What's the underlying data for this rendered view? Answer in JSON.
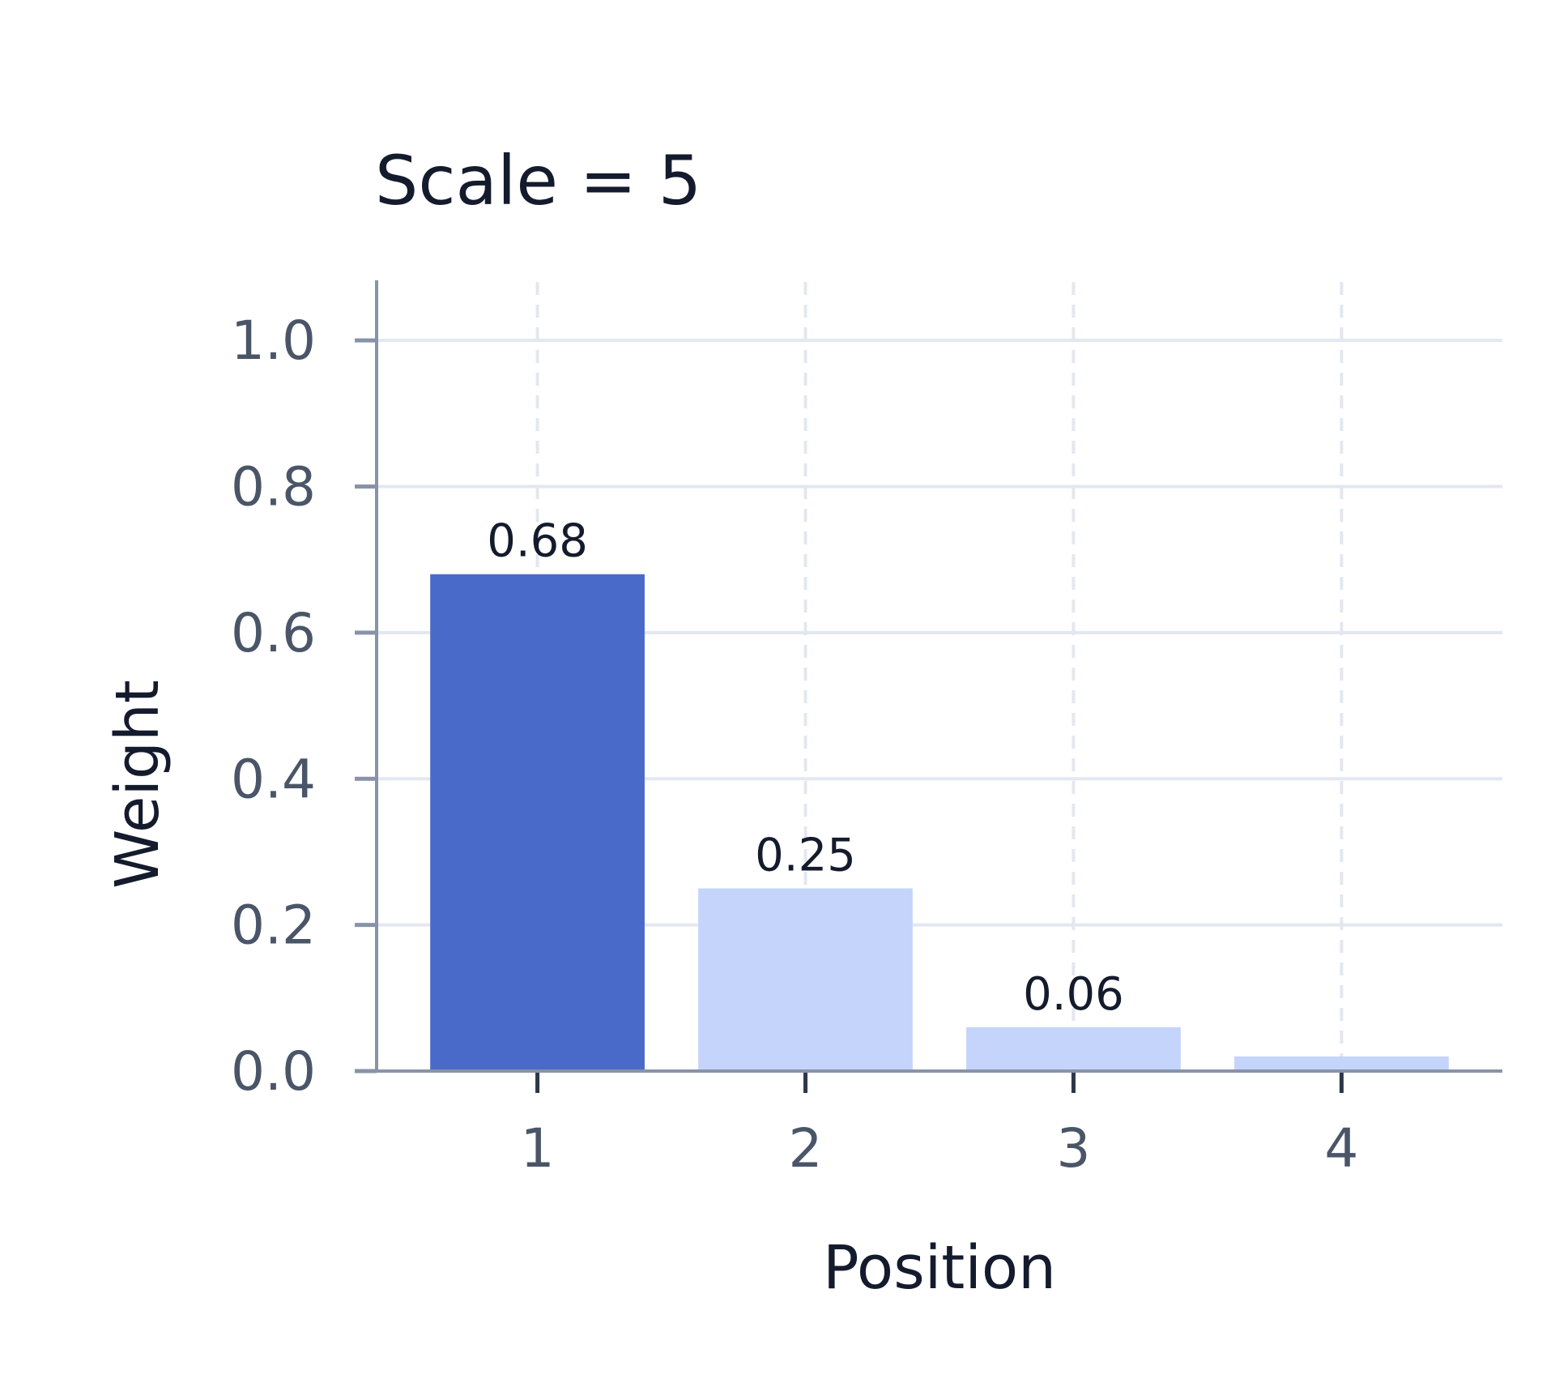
{
  "chart_data": {
    "type": "bar",
    "title": "Scale = 5",
    "xlabel": "Position",
    "ylabel": "Weight",
    "categories": [
      "1",
      "2",
      "3",
      "4"
    ],
    "values": [
      0.68,
      0.25,
      0.06,
      0.02
    ],
    "data_labels": [
      "0.68",
      "0.25",
      "0.06",
      ""
    ],
    "ylim": [
      0,
      1.08
    ],
    "yticks": [
      0.0,
      0.2,
      0.4,
      0.6,
      0.8,
      1.0
    ],
    "ytick_labels": [
      "0.0",
      "0.2",
      "0.4",
      "0.6",
      "0.8",
      "1.0"
    ],
    "grid": true,
    "legend": "none"
  },
  "colors": {
    "highlight_bar": "#4a6ac9",
    "bar": "#c5d4fa",
    "axis": "#8893a8",
    "grid": "#e3e7ef",
    "tick_text": "#4a5568",
    "text": "#141b2d"
  }
}
